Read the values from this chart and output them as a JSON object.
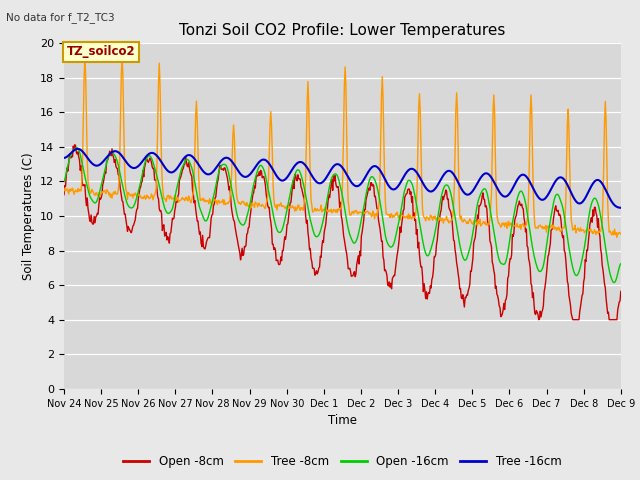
{
  "title": "Tonzi Soil CO2 Profile: Lower Temperatures",
  "top_left_text": "No data for f_T2_TC3",
  "ylabel": "Soil Temperatures (C)",
  "xlabel": "Time",
  "annotation": "TZ_soilco2",
  "ylim": [
    0,
    20
  ],
  "background_color": "#e8e8e8",
  "plot_bg_color": "#d8d8d8",
  "series_colors": {
    "open_8cm": "#cc0000",
    "tree_8cm": "#ff9900",
    "open_16cm": "#00cc00",
    "tree_16cm": "#0000cc"
  },
  "legend_labels": [
    "Open -8cm",
    "Tree -8cm",
    "Open -16cm",
    "Tree -16cm"
  ],
  "x_tick_labels": [
    "Nov 24",
    "Nov 25",
    "Nov 26",
    "Nov 27",
    "Nov 28",
    "Nov 29",
    "Nov 30",
    "Dec 1",
    "Dec 2",
    "Dec 3",
    "Dec 4",
    "Dec 5",
    "Dec 6",
    "Dec 7",
    "Dec 8",
    "Dec 9"
  ],
  "yticks": [
    0,
    2,
    4,
    6,
    8,
    10,
    12,
    14,
    16,
    18,
    20
  ]
}
